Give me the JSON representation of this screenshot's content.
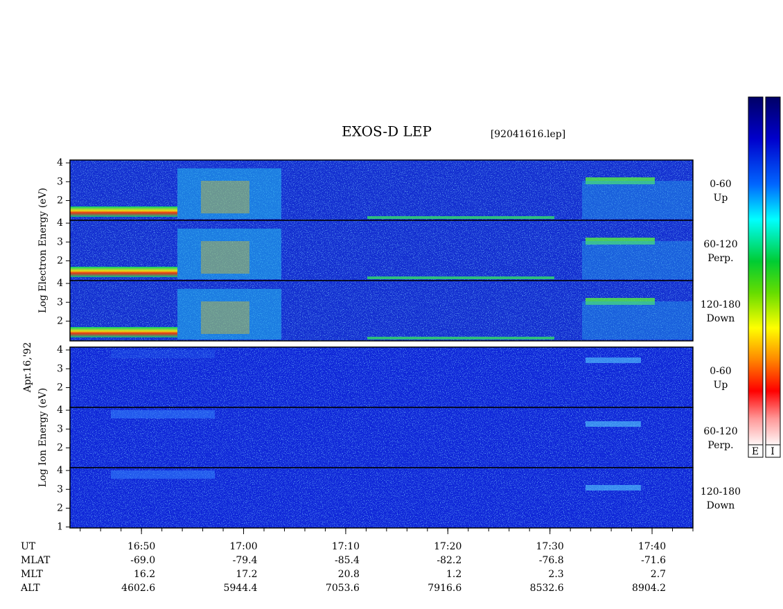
{
  "chart_data": {
    "type": "spectrogram",
    "title": "EXOS-D LEP",
    "subtitle": "[92041616.lep]",
    "date_label": "Apr.16,'92",
    "x_label": "UT",
    "xlim": [
      "16:43",
      "17:44"
    ],
    "xticks": [
      "16:50",
      "17:00",
      "17:10",
      "17:20",
      "17:30",
      "17:40"
    ],
    "ephemeris": [
      {
        "name": "MLAT",
        "values": [
          "-69.0",
          "-79.4",
          "-85.4",
          "-82.2",
          "-76.8",
          "-71.6"
        ]
      },
      {
        "name": "MLT",
        "values": [
          "16.2",
          "17.2",
          "20.8",
          "1.2",
          "2.3",
          "2.7"
        ]
      },
      {
        "name": "ALT",
        "values": [
          "4602.6",
          "5944.4",
          "7053.6",
          "7916.6",
          "8532.6",
          "8904.2"
        ]
      }
    ],
    "colorbar_labels": [
      "E",
      "I"
    ],
    "groups": [
      {
        "ylabel": "Log Electron Energy (eV)",
        "ylim": [
          0.95,
          4.15
        ],
        "panels": [
          {
            "label": "0-60",
            "sublabel": "Up",
            "yticks": [
              2,
              3,
              4
            ]
          },
          {
            "label": "60-120",
            "sublabel": "Perp.",
            "yticks": [
              2,
              3,
              4
            ]
          },
          {
            "label": "120-180",
            "sublabel": "Down",
            "yticks": [
              2,
              3,
              4
            ]
          }
        ]
      },
      {
        "ylabel": "Log Ion Energy (eV)",
        "ylim": [
          0.95,
          4.15
        ],
        "panels": [
          {
            "label": "0-60",
            "sublabel": "Up",
            "yticks": [
              2,
              3,
              4
            ]
          },
          {
            "label": "60-120",
            "sublabel": "Perp.",
            "yticks": [
              2,
              3,
              4
            ]
          },
          {
            "label": "120-180",
            "sublabel": "Down",
            "yticks": [
              1,
              2,
              3,
              4
            ]
          }
        ]
      }
    ]
  }
}
